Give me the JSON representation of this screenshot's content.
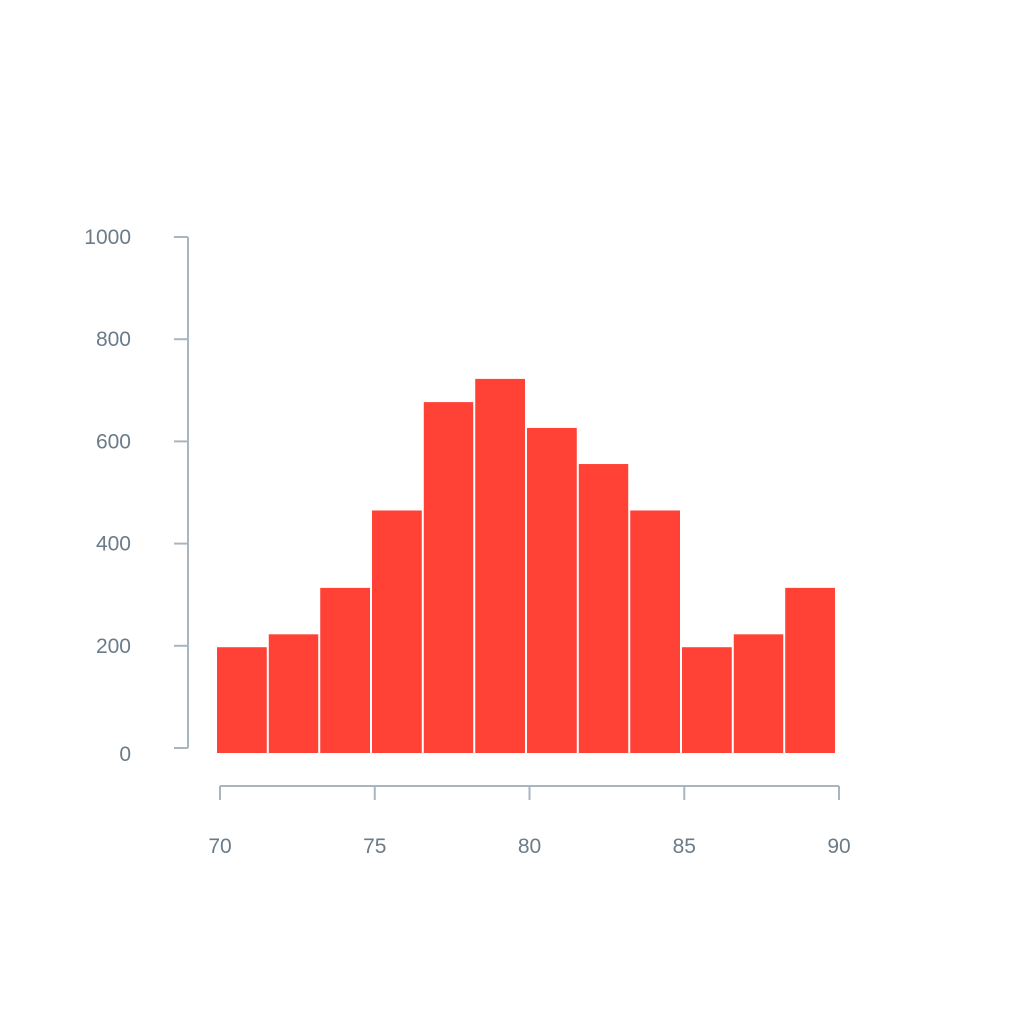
{
  "chart_data": {
    "type": "bar",
    "title": "",
    "xlabel": "",
    "ylabel": "",
    "bins": [
      {
        "x0": 70.0,
        "x1": 71.67,
        "value": 205
      },
      {
        "x0": 71.67,
        "x1": 73.33,
        "value": 230
      },
      {
        "x0": 73.33,
        "x1": 75.0,
        "value": 320
      },
      {
        "x0": 75.0,
        "x1": 76.67,
        "value": 470
      },
      {
        "x0": 76.67,
        "x1": 78.33,
        "value": 680
      },
      {
        "x0": 78.33,
        "x1": 80.0,
        "value": 725
      },
      {
        "x0": 80.0,
        "x1": 81.67,
        "value": 630
      },
      {
        "x0": 81.67,
        "x1": 83.33,
        "value": 560
      },
      {
        "x0": 83.33,
        "x1": 85.0,
        "value": 470
      },
      {
        "x0": 85.0,
        "x1": 86.67,
        "value": 205
      },
      {
        "x0": 86.67,
        "x1": 88.33,
        "value": 230
      },
      {
        "x0": 88.33,
        "x1": 90.0,
        "value": 320
      }
    ],
    "xlim": [
      70,
      90
    ],
    "ylim": [
      0,
      1000
    ],
    "x_ticks": [
      "70",
      "75",
      "80",
      "85",
      "90"
    ],
    "y_ticks": [
      "0",
      "200",
      "400",
      "600",
      "800",
      "1000"
    ],
    "bar_color": "#ff4136",
    "axis_color": "#a9b6bf",
    "label_color": "#6b7b88",
    "grid": false,
    "legend": "none"
  }
}
